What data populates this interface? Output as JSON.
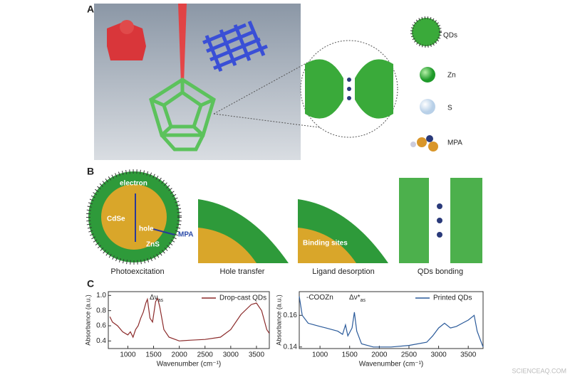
{
  "panels": {
    "a": {
      "label": "A",
      "legend": [
        "QDs",
        "Zn",
        "S",
        "MPA"
      ]
    },
    "b": {
      "label": "B",
      "captions": [
        "Photoexcitation",
        "Hole transfer",
        "Ligand desorption",
        "QDs bonding"
      ],
      "labels": [
        "electron",
        "CdSe",
        "hole",
        "ZnS",
        "MPA",
        "Binding sites"
      ]
    },
    "c": {
      "label": "C"
    }
  },
  "chart_data": [
    {
      "type": "line",
      "x_label": "Wavenumber (cm⁻¹)",
      "y_label": "Absorbance (a.u.)",
      "annotations": [
        {
          "text": "Δν",
          "sub": "as"
        }
      ],
      "x": [
        650,
        700,
        800,
        900,
        1000,
        1050,
        1100,
        1150,
        1200,
        1250,
        1300,
        1350,
        1380,
        1430,
        1480,
        1540,
        1580,
        1620,
        1700,
        1800,
        2000,
        2200,
        2500,
        2800,
        3000,
        3200,
        3400,
        3500,
        3600,
        3700,
        3750
      ],
      "series": [
        {
          "name": "Drop-cast QDs",
          "color": "#8b2a2a",
          "values": [
            0.72,
            0.65,
            0.6,
            0.52,
            0.48,
            0.52,
            0.45,
            0.55,
            0.6,
            0.7,
            0.78,
            0.9,
            0.95,
            0.7,
            0.65,
            0.92,
            0.96,
            0.85,
            0.55,
            0.45,
            0.4,
            0.41,
            0.42,
            0.45,
            0.55,
            0.75,
            0.88,
            0.9,
            0.8,
            0.55,
            0.5
          ]
        }
      ],
      "xlim": [
        620,
        3750
      ],
      "xticks": [
        1000,
        1500,
        2000,
        2500,
        3000,
        3500
      ],
      "ylim": [
        0.3,
        1.05
      ],
      "yticks": [
        0.4,
        0.6,
        0.8,
        {
          "value": 1,
          "label": "1.0"
        }
      ]
    },
    {
      "type": "line",
      "x_label": "Wavenumber (cm⁻¹)",
      "y_label": "Absorbance (a.u.)",
      "annotations": [
        {
          "text": "-COOZn",
          "sub": null
        },
        {
          "text": "Δν*",
          "sub": "as"
        }
      ],
      "x": [
        650,
        700,
        800,
        900,
        1000,
        1100,
        1200,
        1300,
        1380,
        1430,
        1470,
        1540,
        1580,
        1620,
        1700,
        1900,
        2200,
        2500,
        2800,
        2900,
        3000,
        3100,
        3200,
        3300,
        3400,
        3500,
        3600,
        3650,
        3700,
        3750
      ],
      "series": [
        {
          "name": "Printed QDs",
          "color": "#2a5a9a",
          "values": [
            0.172,
            0.16,
            0.155,
            0.154,
            0.153,
            0.152,
            0.151,
            0.15,
            0.148,
            0.154,
            0.147,
            0.152,
            0.162,
            0.15,
            0.142,
            0.14,
            0.14,
            0.141,
            0.143,
            0.147,
            0.152,
            0.155,
            0.152,
            0.153,
            0.155,
            0.157,
            0.16,
            0.15,
            0.145,
            0.14
          ]
        }
      ],
      "xlim": [
        650,
        3750
      ],
      "xticks": [
        1000,
        1500,
        2000,
        2500,
        3000,
        3500
      ],
      "ylim": [
        0.139,
        0.175
      ],
      "yticks": [
        0.14,
        0.16
      ]
    }
  ],
  "watermark": "SCIENCEAQ.COM"
}
